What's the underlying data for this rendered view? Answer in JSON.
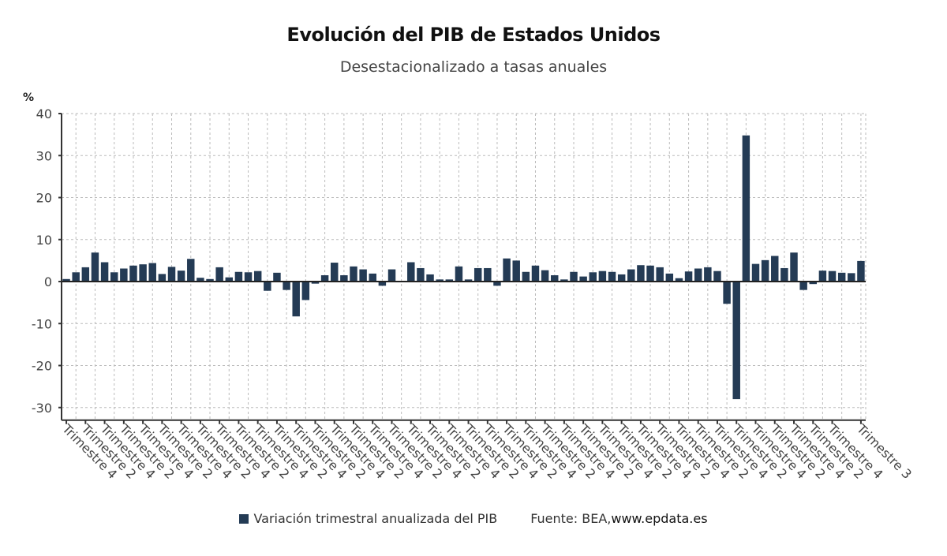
{
  "header": {
    "title": "Evolución del PIB de Estados Unidos",
    "subtitle": "Desestacionalizado a tasas anuales"
  },
  "colors": {
    "bar": "#243b55",
    "axis": "#333333",
    "grid": "#bbbbbb"
  },
  "legend": {
    "series_label": "Variación trimestral anualizada del PIB",
    "source_prefix": "Fuente: BEA, ",
    "source_url": "www.epdata.es"
  },
  "chart_data": {
    "type": "bar",
    "title": "Evolución del PIB de Estados Unidos",
    "subtitle": "Desestacionalizado a tasas anuales",
    "ylabel": "%",
    "xlabel": "",
    "ylim": [
      -33,
      40
    ],
    "yticks": [
      40,
      30,
      20,
      10,
      0,
      -10,
      -20,
      -30
    ],
    "grid": true,
    "legend_position": "bottom",
    "series": [
      {
        "name": "Variación trimestral anualizada del PIB",
        "values": [
          0.6,
          2.2,
          3.4,
          6.9,
          4.6,
          2.2,
          3.1,
          3.8,
          4.1,
          4.4,
          1.8,
          3.5,
          2.6,
          5.4,
          0.9,
          0.6,
          3.4,
          1.0,
          2.3,
          2.2,
          2.5,
          -2.2,
          2.1,
          -2.0,
          -8.3,
          -4.4,
          -0.5,
          1.5,
          4.5,
          1.5,
          3.6,
          2.9,
          1.9,
          -1.0,
          2.9,
          0.0,
          4.6,
          3.2,
          1.7,
          0.5,
          0.5,
          3.6,
          0.5,
          3.2,
          3.2,
          -1.0,
          5.5,
          5.0,
          2.3,
          3.8,
          2.7,
          1.5,
          0.5,
          2.3,
          1.2,
          2.2,
          2.5,
          2.3,
          1.7,
          2.9,
          3.9,
          3.8,
          3.4,
          1.9,
          0.8,
          2.4,
          3.1,
          3.4,
          2.5,
          -5.3,
          -28.0,
          34.8,
          4.2,
          5.1,
          6.1,
          3.2,
          6.9,
          -2.0,
          -0.6,
          2.6,
          2.5,
          2.1,
          2.0,
          4.9
        ]
      }
    ],
    "categories_labels": [
      {
        "index": 0,
        "label": "Trimestre 4"
      },
      {
        "index": 2,
        "label": "Trimestre 2"
      },
      {
        "index": 4,
        "label": "Trimestre 4"
      },
      {
        "index": 6,
        "label": "Trimestre 2"
      },
      {
        "index": 8,
        "label": "Trimestre 4"
      },
      {
        "index": 10,
        "label": "Trimestre 2"
      },
      {
        "index": 12,
        "label": "Trimestre 4"
      },
      {
        "index": 14,
        "label": "Trimestre 2"
      },
      {
        "index": 16,
        "label": "Trimestre 4"
      },
      {
        "index": 18,
        "label": "Trimestre 2"
      },
      {
        "index": 20,
        "label": "Trimestre 4"
      },
      {
        "index": 22,
        "label": "Trimestre 2"
      },
      {
        "index": 24,
        "label": "Trimestre 4"
      },
      {
        "index": 26,
        "label": "Trimestre 2"
      },
      {
        "index": 28,
        "label": "Trimestre 4"
      },
      {
        "index": 30,
        "label": "Trimestre 2"
      },
      {
        "index": 32,
        "label": "Trimestre 4"
      },
      {
        "index": 34,
        "label": "Trimestre 2"
      },
      {
        "index": 36,
        "label": "Trimestre 4"
      },
      {
        "index": 38,
        "label": "Trimestre 2"
      },
      {
        "index": 40,
        "label": "Trimestre 4"
      },
      {
        "index": 42,
        "label": "Trimestre 2"
      },
      {
        "index": 44,
        "label": "Trimestre 4"
      },
      {
        "index": 46,
        "label": "Trimestre 2"
      },
      {
        "index": 48,
        "label": "Trimestre 4"
      },
      {
        "index": 50,
        "label": "Trimestre 2"
      },
      {
        "index": 52,
        "label": "Trimestre 4"
      },
      {
        "index": 54,
        "label": "Trimestre 2"
      },
      {
        "index": 56,
        "label": "Trimestre 4"
      },
      {
        "index": 58,
        "label": "Trimestre 2"
      },
      {
        "index": 60,
        "label": "Trimestre 4"
      },
      {
        "index": 62,
        "label": "Trimestre 2"
      },
      {
        "index": 64,
        "label": "Trimestre 4"
      },
      {
        "index": 66,
        "label": "Trimestre 2"
      },
      {
        "index": 68,
        "label": "Trimestre 4"
      },
      {
        "index": 70,
        "label": "Trimestre 2"
      },
      {
        "index": 72,
        "label": "Trimestre 4"
      },
      {
        "index": 74,
        "label": "Trimestre 2"
      },
      {
        "index": 76,
        "label": "Trimestre 4"
      },
      {
        "index": 78,
        "label": "Trimestre 2"
      },
      {
        "index": 80,
        "label": "Trimestre 4"
      },
      {
        "index": 83,
        "label": "Trimestre 3"
      }
    ]
  }
}
